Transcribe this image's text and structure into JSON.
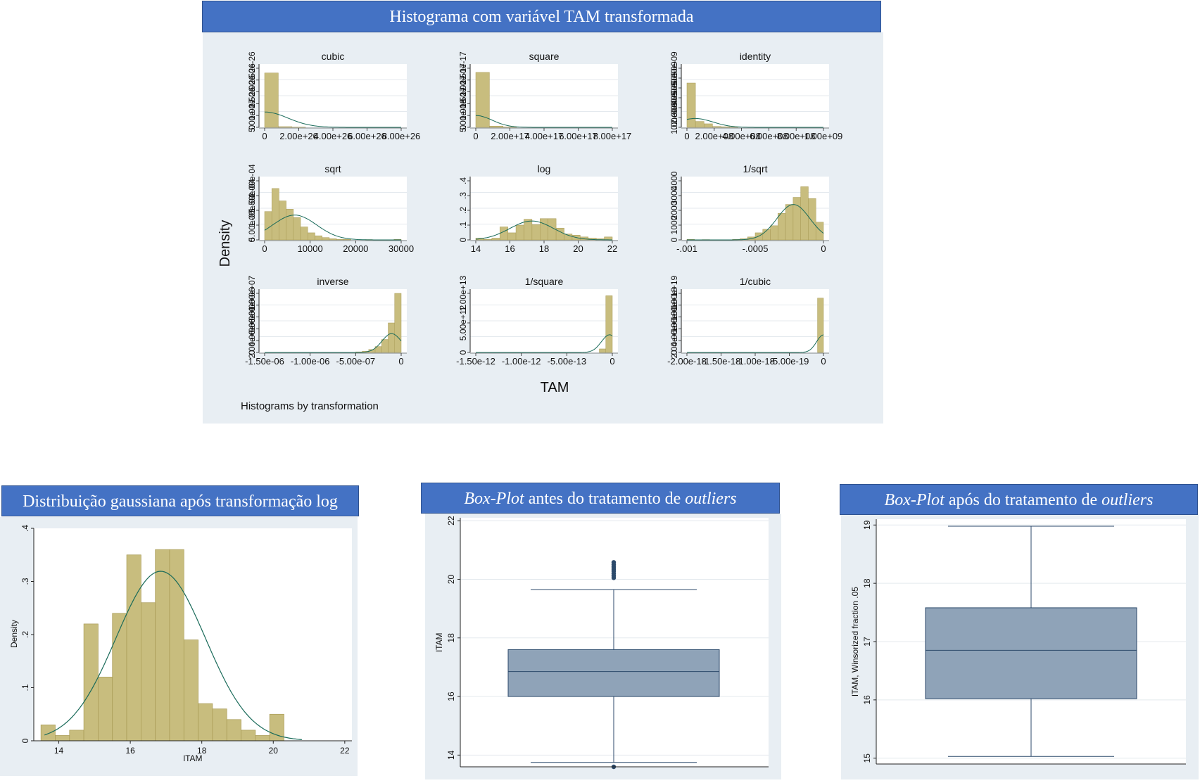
{
  "colors": {
    "banner": "#4472C4",
    "panel_bg": "#E8EEF3",
    "bar_fill": "#C8BD7E",
    "bar_stroke": "#A89A55",
    "curve": "#1A6B5A",
    "box_fill": "#8FA3B8",
    "box_stroke": "#2C4A6B"
  },
  "top": {
    "banner": "Histograma com variável TAM transformada",
    "ylabel": "Density",
    "xlabel": "TAM",
    "note": "Histograms by transformation"
  },
  "bottom": {
    "hist_banner": "Distribuição gaussiana após transformação log",
    "box1_banner": {
      "italic1": "Box-Plot",
      "mid": " antes do tratamento de ",
      "italic2": "outliers"
    },
    "box2_banner": {
      "italic1": "Box-Plot",
      "mid": " após do tratamento de ",
      "italic2": "outliers"
    }
  },
  "chart_data": [
    {
      "type": "bar",
      "title": "cubic",
      "xtick_labels": [
        "0",
        "2.00e+26",
        "4.00e+26",
        "6.00e+26",
        "8.00e+26"
      ],
      "ytick_labels": [
        "0",
        "5.00e-27",
        "1.00e-26",
        "1.50e-26",
        "2.00e-26",
        "2.50e-26"
      ],
      "bin_heights": [
        0.92,
        0.012,
        0.004,
        0,
        0,
        0,
        0,
        0,
        0,
        0
      ],
      "curve_peak": 0.26,
      "curve_center": 0.0,
      "curve_width": 0.17
    },
    {
      "type": "bar",
      "title": "square",
      "xtick_labels": [
        "0",
        "2.00e+17",
        "4.00e+17",
        "6.00e+17",
        "8.00e+17"
      ],
      "ytick_labels": [
        "0",
        "5.00e-18",
        "1.00e-17",
        "1.50e-17",
        "2.00e-17",
        "2.50e-17"
      ],
      "bin_heights": [
        0.93,
        0.02,
        0.006,
        0,
        0,
        0,
        0,
        0,
        0,
        0
      ],
      "curve_peak": 0.2,
      "curve_center": 0.0,
      "curve_width": 0.12
    },
    {
      "type": "bar",
      "title": "identity",
      "xtick_labels": [
        "0",
        "2.00e+08",
        "4.00e+08",
        "6.00e+08",
        "8.00e+08",
        "1.00e+09"
      ],
      "ytick_labels": [
        "0",
        "1.00e-09",
        "2.00e-09",
        "3.00e-09",
        "4.00e-09",
        "5.00e-09",
        "6.00e-09"
      ],
      "bin_heights": [
        0.75,
        0.1,
        0.06,
        0.015,
        0.01,
        0.005,
        0,
        0,
        0,
        0,
        0,
        0,
        0,
        0,
        0,
        0
      ],
      "curve_peak": 0.15,
      "curve_center": 0.06,
      "curve_width": 0.13
    },
    {
      "type": "bar",
      "title": "sqrt",
      "xtick_labels": [
        "0",
        "10000",
        "20000",
        "30000"
      ],
      "ytick_labels": [
        "0",
        "5.00e-05",
        "1.00e-04",
        "1.50e-04",
        "2.00e-04"
      ],
      "bin_heights": [
        0.48,
        0.87,
        0.66,
        0.52,
        0.38,
        0.22,
        0.12,
        0.07,
        0.04,
        0.02,
        0.01,
        0.01,
        0,
        0,
        0.005,
        0,
        0,
        0,
        0.01
      ],
      "curve_peak": 0.42,
      "curve_center": 0.22,
      "curve_width": 0.16
    },
    {
      "type": "bar",
      "title": "log",
      "xtick_labels": [
        "14",
        "16",
        "18",
        "20",
        "22"
      ],
      "ytick_labels": [
        "0",
        ".1",
        ".2",
        ".3",
        ".4"
      ],
      "bin_heights": [
        0.03,
        0.01,
        0.03,
        0.22,
        0.12,
        0.25,
        0.35,
        0.26,
        0.36,
        0.36,
        0.2,
        0.1,
        0.08,
        0.05,
        0.03,
        0.02,
        0.05
      ],
      "curve_peak": 0.32,
      "curve_center": 0.41,
      "curve_width": 0.16
    },
    {
      "type": "bar",
      "title": "1/sqrt",
      "xtick_labels": [
        "-.001",
        "-.0005",
        "0"
      ],
      "ytick_labels": [
        "0",
        "1000",
        "2000",
        "3000",
        "4000"
      ],
      "bin_heights": [
        0.01,
        0,
        0.005,
        0,
        0,
        0,
        0.01,
        0.02,
        0.05,
        0.12,
        0.18,
        0.24,
        0.45,
        0.6,
        0.72,
        0.9,
        0.7,
        0.3
      ],
      "curve_peak": 0.6,
      "curve_center": 0.78,
      "curve_width": 0.12
    },
    {
      "type": "bar",
      "title": "inverse",
      "xtick_labels": [
        "-1.50e-06",
        "-1.00e-06",
        "-5.00e-07",
        "0"
      ],
      "ytick_labels": [
        "0",
        "2.00e+06",
        "4.00e+06",
        "6.00e+06",
        "8.00e+06",
        "1.00e+07"
      ],
      "bin_heights": [
        0,
        0,
        0,
        0,
        0,
        0,
        0,
        0,
        0,
        0,
        0,
        0,
        0,
        0,
        0.01,
        0.02,
        0.05,
        0.1,
        0.22,
        0.5,
        1.0
      ],
      "curve_peak": 0.32,
      "curve_center": 0.93,
      "curve_width": 0.07
    },
    {
      "type": "bar",
      "title": "1/square",
      "xtick_labels": [
        "-1.50e-12",
        "-1.00e-12",
        "-5.00e-13",
        "0"
      ],
      "ytick_labels": [
        "0",
        "5.00e+12",
        "1.00e+13"
      ],
      "bin_heights": [
        0,
        0,
        0,
        0,
        0,
        0,
        0,
        0,
        0,
        0,
        0,
        0,
        0,
        0,
        0,
        0,
        0,
        0,
        0,
        0.06,
        0.96
      ],
      "curve_peak": 0.3,
      "curve_center": 0.98,
      "curve_width": 0.06
    },
    {
      "type": "bar",
      "title": "1/cubic",
      "xtick_labels": [
        "-2.00e-18",
        "-1.50e-18",
        "-1.00e-18",
        "-5.00e-19",
        "0"
      ],
      "ytick_labels": [
        "0",
        "2.00e+18",
        "4.00e+18",
        "6.00e+18",
        "8.00e+18",
        "1.00e+19"
      ],
      "bin_heights": [
        0,
        0,
        0,
        0,
        0,
        0,
        0,
        0,
        0,
        0,
        0,
        0,
        0,
        0,
        0,
        0,
        0,
        0,
        0,
        0,
        0,
        0,
        0.92
      ],
      "curve_peak": 0.3,
      "curve_center": 1.0,
      "curve_width": 0.05
    },
    {
      "type": "bar",
      "title": "",
      "xlabel": "lTAM",
      "ylabel": "Density",
      "xlim": [
        13.3,
        22.2
      ],
      "ylim": [
        0,
        0.4
      ],
      "xtick_labels": [
        "14",
        "16",
        "18",
        "20",
        "22"
      ],
      "ytick_labels": [
        "0",
        ".1",
        ".2",
        ".3",
        ".4"
      ],
      "bin_start": 13.5,
      "bin_width": 0.4,
      "bin_heights": [
        0.03,
        0.01,
        0.02,
        0.22,
        0.12,
        0.24,
        0.35,
        0.26,
        0.36,
        0.36,
        0.19,
        0.07,
        0.06,
        0.04,
        0.02,
        0.01,
        0.05
      ],
      "normal_mean": 16.85,
      "normal_sd": 1.25
    },
    {
      "type": "box",
      "title": "",
      "ylabel": "lTAM",
      "ylim": [
        13.6,
        22.1
      ],
      "ytick_labels": [
        "14",
        "16",
        "18",
        "20",
        "22"
      ],
      "whisker_low": 13.75,
      "q1": 16.0,
      "median": 16.85,
      "q3": 17.6,
      "whisker_high": 19.65,
      "outliers": [
        13.6,
        20.05,
        20.12,
        20.2,
        20.28,
        20.35,
        20.42,
        20.5,
        20.58
      ]
    },
    {
      "type": "box",
      "title": "",
      "ylabel": "lTAM, Winsorized fraction .05",
      "ylim": [
        14.9,
        19.1
      ],
      "ytick_labels": [
        "15",
        "16",
        "17",
        "18",
        "19"
      ],
      "whisker_low": 15.03,
      "q1": 16.02,
      "median": 16.85,
      "q3": 17.58,
      "whisker_high": 18.98,
      "outliers": []
    }
  ]
}
